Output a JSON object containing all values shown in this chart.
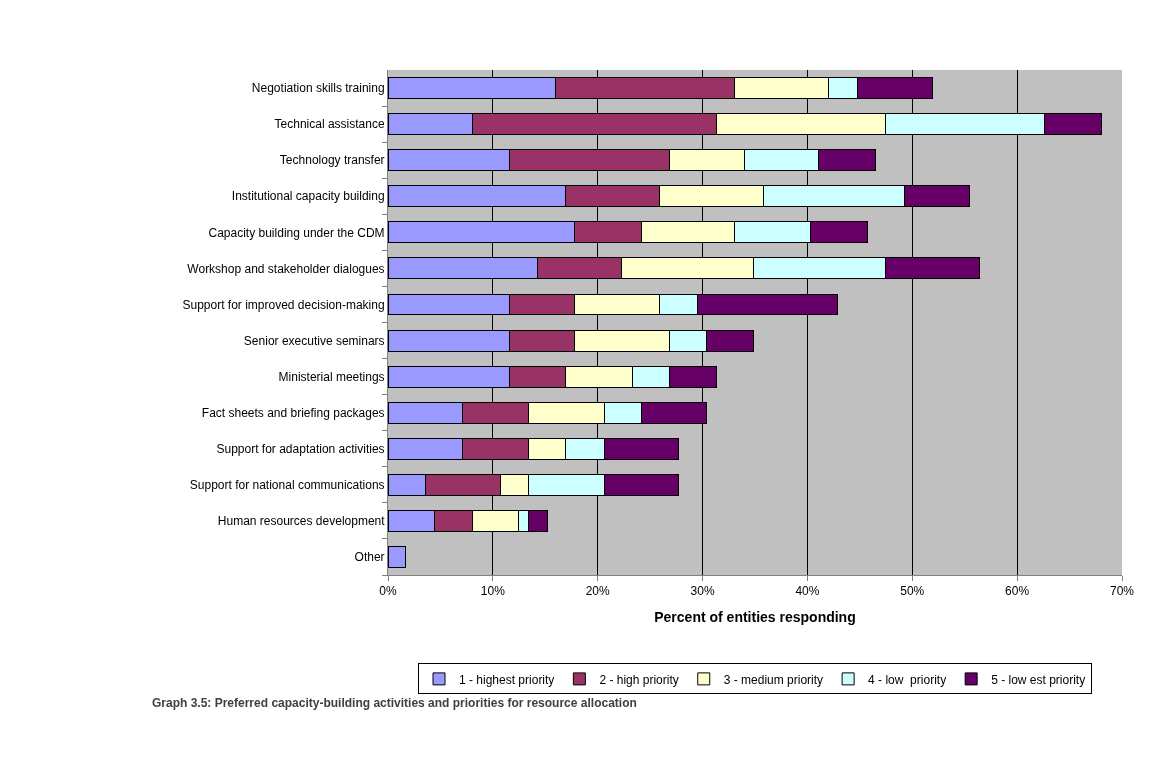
{
  "chart_data": {
    "type": "bar",
    "orientation": "horizontal",
    "stacked": true,
    "categories": [
      "Negotiation skills training",
      "Technical assistance",
      "Technology transfer",
      "Institutional capacity building",
      "Capacity building under the CDM",
      "Workshop and stakeholder dialogues",
      "Support for improved decision-making",
      "Senior executive seminars",
      "Ministerial meetings",
      "Fact sheets and briefing packages",
      "Support for adaptation activities",
      "Support for national communications",
      "Human resources development",
      "Other"
    ],
    "series": [
      {
        "name": "1 - highest priority",
        "color": "#9999ff",
        "values": [
          16.0,
          8.1,
          11.6,
          16.9,
          17.8,
          14.3,
          11.6,
          11.6,
          11.6,
          7.1,
          7.1,
          3.6,
          4.4,
          1.7
        ]
      },
      {
        "name": "2 - high priority",
        "color": "#993366",
        "values": [
          17.0,
          23.2,
          15.2,
          9.0,
          6.4,
          8.0,
          6.2,
          6.2,
          5.3,
          6.3,
          6.3,
          7.1,
          3.7,
          null
        ]
      },
      {
        "name": "3 - medium priority",
        "color": "#ffffcc",
        "values": [
          9.0,
          16.1,
          7.2,
          9.9,
          8.8,
          12.6,
          8.1,
          9.0,
          6.4,
          7.2,
          3.5,
          2.7,
          4.3,
          null
        ]
      },
      {
        "name": "4 - low  priority",
        "color": "#ccffff",
        "values": [
          2.8,
          15.2,
          7.1,
          13.5,
          7.3,
          12.5,
          3.6,
          3.6,
          3.5,
          3.6,
          3.7,
          7.2,
          1.0,
          null
        ]
      },
      {
        "name": "5 - low est priority",
        "color": "#660066",
        "values": [
          7.1,
          5.4,
          5.4,
          6.2,
          5.4,
          9.0,
          13.4,
          4.5,
          4.5,
          6.2,
          7.1,
          7.1,
          1.8,
          null
        ]
      }
    ],
    "xlabel": "Percent of entities responding",
    "xlim": [
      0,
      70
    ],
    "xticks": [
      {
        "value": 0,
        "label": "0%"
      },
      {
        "value": 10,
        "label": "10%"
      },
      {
        "value": 20,
        "label": "20%"
      },
      {
        "value": 30,
        "label": "30%"
      },
      {
        "value": 40,
        "label": "40%"
      },
      {
        "value": 50,
        "label": "50%"
      },
      {
        "value": 60,
        "label": "60%"
      },
      {
        "value": 70,
        "label": "70%"
      }
    ],
    "grid": "x",
    "legend": "bottom",
    "annotations": [
      "Graph 3.5: Preferred capacity-building activities and priorities for resource allocation"
    ]
  }
}
